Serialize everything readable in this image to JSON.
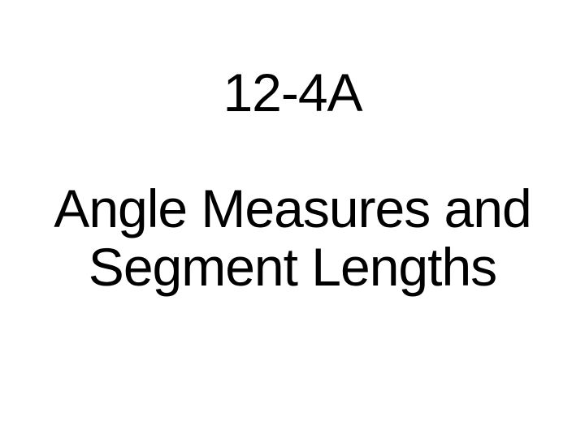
{
  "slide": {
    "section_number": "12-4A",
    "title_line1": "Angle Measures and",
    "title_line2": "Segment Lengths",
    "background_color": "#ffffff",
    "text_color": "#000000",
    "section_fontsize": 66,
    "title_fontsize": 66,
    "font_family": "Arial"
  }
}
